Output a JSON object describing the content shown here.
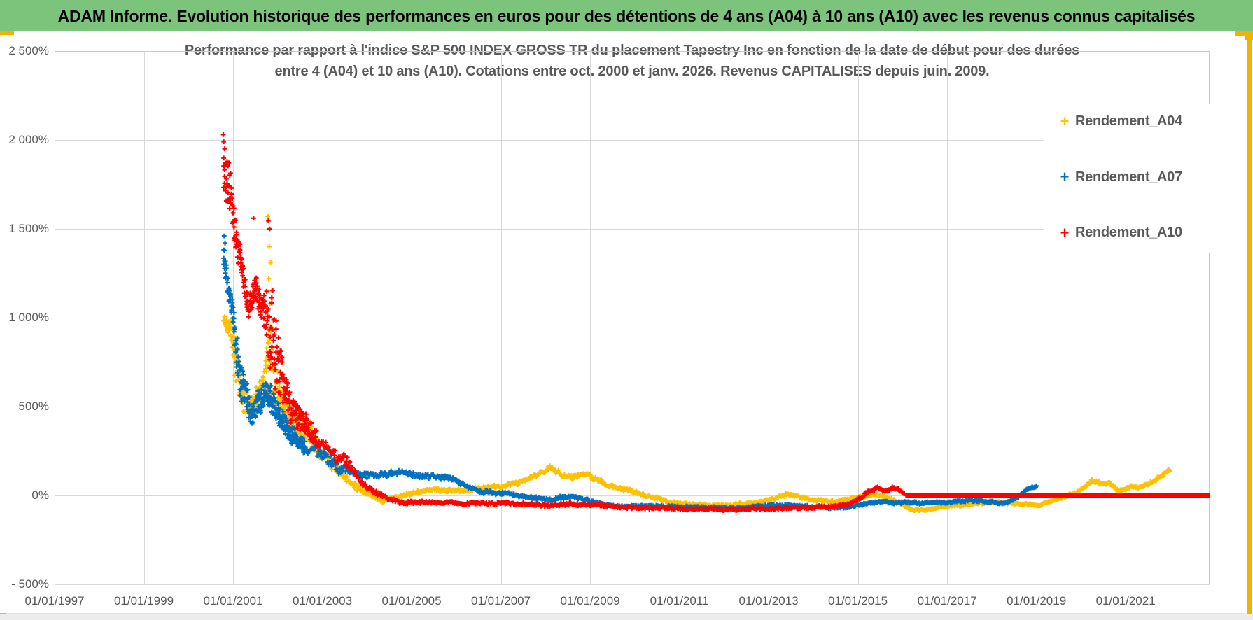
{
  "banner": {
    "title": "ADAM Informe. Evolution historique des performances en euros pour des détentions de 4 ans (A04) à 10 ans (A10) avec les revenus connus capitalisés"
  },
  "colors": {
    "banner_green": "#7cc47c",
    "accent_gold": "#f0b400",
    "grid": "#d9d9d9",
    "axis_text": "#595959",
    "title_text": "#595959",
    "series_a04": "#ffc000",
    "series_a07": "#0070c0",
    "series_a10": "#ff0000"
  },
  "chart_data": {
    "type": "scatter",
    "title_line1": "Performance par rapport à l'indice S&P 500 INDEX GROSS TR  du placement Tapestry Inc en fonction de la date de début pour des durées",
    "title_line2": "entre 4 (A04) et 10 ans (A10). Cotations entre oct. 2000 et janv. 2026. Revenus CAPITALISES depuis juin. 2009.",
    "grid": true,
    "marker": "plus",
    "legend_position": "top-right-inside",
    "x_axis": {
      "min_year": 1997,
      "max_year": 2022.88,
      "ticks": [
        {
          "label": "01/01/1997",
          "year": 1997
        },
        {
          "label": "01/01/1999",
          "year": 1999
        },
        {
          "label": "01/01/2001",
          "year": 2001
        },
        {
          "label": "01/01/2003",
          "year": 2003
        },
        {
          "label": "01/01/2005",
          "year": 2005
        },
        {
          "label": "01/01/2007",
          "year": 2007
        },
        {
          "label": "01/01/2009",
          "year": 2009
        },
        {
          "label": "01/01/2011",
          "year": 2011
        },
        {
          "label": "01/01/2013",
          "year": 2013
        },
        {
          "label": "01/01/2015",
          "year": 2015
        },
        {
          "label": "01/01/2017",
          "year": 2017
        },
        {
          "label": "01/01/2019",
          "year": 2019
        },
        {
          "label": "01/01/2021",
          "year": 2021
        }
      ]
    },
    "y_axis": {
      "min": -500,
      "max": 2500,
      "ticks": [
        {
          "label": "2 500%",
          "value": 2500
        },
        {
          "label": "2 000%",
          "value": 2000
        },
        {
          "label": "1 500%",
          "value": 1500
        },
        {
          "label": "1 000%",
          "value": 1000
        },
        {
          "label": "500%",
          "value": 500
        },
        {
          "label": "0%",
          "value": 0
        },
        {
          "label": "- 500%",
          "value": -500
        }
      ]
    },
    "legend": [
      {
        "label": "Rendement_A04",
        "color": "#ffc000"
      },
      {
        "label": "Rendement_A07",
        "color": "#0070c0"
      },
      {
        "label": "Rendement_A10",
        "color": "#ff0000"
      }
    ],
    "series": [
      {
        "name": "Rendement_A04",
        "color": "#ffc000",
        "seed": 11,
        "anchors": [
          [
            2000.79,
            980,
            60
          ],
          [
            2000.95,
            940,
            70
          ],
          [
            2001.05,
            800,
            200
          ],
          [
            2001.2,
            620,
            120
          ],
          [
            2001.35,
            520,
            90
          ],
          [
            2001.5,
            560,
            80
          ],
          [
            2001.65,
            640,
            100
          ],
          [
            2001.8,
            900,
            350
          ],
          [
            2001.95,
            730,
            200
          ],
          [
            2002.1,
            560,
            130
          ],
          [
            2002.3,
            470,
            110
          ],
          [
            2002.5,
            450,
            100
          ],
          [
            2002.7,
            400,
            90
          ],
          [
            2002.85,
            330,
            70
          ],
          [
            2003.0,
            255,
            50
          ],
          [
            2003.3,
            170,
            40
          ],
          [
            2003.6,
            90,
            30
          ],
          [
            2003.9,
            35,
            20
          ],
          [
            2004.1,
            10,
            16
          ],
          [
            2004.35,
            -25,
            14
          ],
          [
            2004.6,
            -8,
            13
          ],
          [
            2004.9,
            12,
            13
          ],
          [
            2005.2,
            25,
            13
          ],
          [
            2005.5,
            35,
            13
          ],
          [
            2005.8,
            28,
            13
          ],
          [
            2006.1,
            22,
            13
          ],
          [
            2006.4,
            35,
            13
          ],
          [
            2006.7,
            45,
            13
          ],
          [
            2007.0,
            42,
            13
          ],
          [
            2007.3,
            60,
            14
          ],
          [
            2007.6,
            85,
            15
          ],
          [
            2007.9,
            120,
            17
          ],
          [
            2008.1,
            148,
            17
          ],
          [
            2008.3,
            125,
            17
          ],
          [
            2008.55,
            100,
            16
          ],
          [
            2008.75,
            112,
            16
          ],
          [
            2008.95,
            122,
            16
          ],
          [
            2009.15,
            95,
            15
          ],
          [
            2009.4,
            60,
            14
          ],
          [
            2009.7,
            35,
            13
          ],
          [
            2010.0,
            15,
            12
          ],
          [
            2010.4,
            -15,
            11
          ],
          [
            2010.8,
            -40,
            10
          ],
          [
            2011.2,
            -52,
            9
          ],
          [
            2011.6,
            -58,
            9
          ],
          [
            2012.0,
            -60,
            9
          ],
          [
            2012.4,
            -50,
            9
          ],
          [
            2012.8,
            -42,
            9
          ],
          [
            2013.1,
            -15,
            10
          ],
          [
            2013.4,
            8,
            10
          ],
          [
            2013.7,
            -5,
            10
          ],
          [
            2014.0,
            -22,
            9
          ],
          [
            2014.4,
            -35,
            9
          ],
          [
            2014.8,
            -18,
            9
          ],
          [
            2015.1,
            -5,
            9
          ],
          [
            2015.4,
            5,
            9
          ],
          [
            2015.7,
            -15,
            9
          ],
          [
            2015.95,
            -40,
            9
          ],
          [
            2016.2,
            -80,
            9
          ],
          [
            2016.5,
            -85,
            8
          ],
          [
            2016.8,
            -70,
            8
          ],
          [
            2017.2,
            -58,
            8
          ],
          [
            2017.6,
            -45,
            8
          ],
          [
            2018.0,
            -32,
            8
          ],
          [
            2018.4,
            -42,
            8
          ],
          [
            2018.8,
            -52,
            8
          ],
          [
            2019.05,
            -60,
            8
          ],
          [
            2019.3,
            -35,
            8
          ],
          [
            2019.6,
            -10,
            8
          ],
          [
            2019.9,
            15,
            9
          ],
          [
            2020.1,
            55,
            12
          ],
          [
            2020.25,
            88,
            12
          ],
          [
            2020.45,
            70,
            12
          ],
          [
            2020.65,
            75,
            12
          ],
          [
            2020.85,
            25,
            10
          ],
          [
            2021.0,
            40,
            10
          ],
          [
            2021.15,
            55,
            10
          ],
          [
            2021.3,
            38,
            10
          ],
          [
            2021.5,
            55,
            10
          ],
          [
            2021.65,
            85,
            12
          ],
          [
            2021.8,
            110,
            12
          ],
          [
            2021.95,
            140,
            12
          ],
          [
            2022.0,
            145,
            10
          ]
        ],
        "extra_points": [
          [
            2001.78,
            1570
          ],
          [
            2001.81,
            1400
          ],
          [
            2001.84,
            1310
          ],
          [
            2001.8,
            1220
          ],
          [
            2001.86,
            1150
          ],
          [
            2001.83,
            1080
          ]
        ]
      },
      {
        "name": "Rendement_A07",
        "color": "#0070c0",
        "seed": 23,
        "anchors": [
          [
            2000.79,
            1380,
            110
          ],
          [
            2000.9,
            1150,
            90
          ],
          [
            2001.0,
            1000,
            90
          ],
          [
            2001.1,
            700,
            200
          ],
          [
            2001.25,
            560,
            120
          ],
          [
            2001.4,
            480,
            100
          ],
          [
            2001.55,
            520,
            90
          ],
          [
            2001.7,
            560,
            100
          ],
          [
            2001.85,
            500,
            110
          ],
          [
            2002.0,
            420,
            100
          ],
          [
            2002.2,
            360,
            80
          ],
          [
            2002.4,
            310,
            70
          ],
          [
            2002.6,
            280,
            60
          ],
          [
            2002.8,
            235,
            50
          ],
          [
            2003.0,
            205,
            45
          ],
          [
            2003.3,
            165,
            35
          ],
          [
            2003.6,
            130,
            28
          ],
          [
            2003.9,
            112,
            22
          ],
          [
            2004.2,
            118,
            20
          ],
          [
            2004.5,
            130,
            20
          ],
          [
            2004.8,
            138,
            18
          ],
          [
            2005.1,
            120,
            18
          ],
          [
            2005.4,
            112,
            17
          ],
          [
            2005.7,
            108,
            16
          ],
          [
            2006.0,
            80,
            15
          ],
          [
            2006.3,
            48,
            14
          ],
          [
            2006.6,
            22,
            13
          ],
          [
            2006.9,
            5,
            12
          ],
          [
            2007.2,
            10,
            12
          ],
          [
            2007.5,
            -5,
            11
          ],
          [
            2007.8,
            -12,
            11
          ],
          [
            2008.1,
            -20,
            11
          ],
          [
            2008.4,
            -8,
            12
          ],
          [
            2008.7,
            -18,
            11
          ],
          [
            2009.0,
            -35,
            10
          ],
          [
            2009.4,
            -52,
            9
          ],
          [
            2009.8,
            -60,
            9
          ],
          [
            2010.3,
            -62,
            8
          ],
          [
            2010.8,
            -58,
            8
          ],
          [
            2011.3,
            -62,
            8
          ],
          [
            2011.8,
            -68,
            8
          ],
          [
            2012.3,
            -65,
            8
          ],
          [
            2012.8,
            -60,
            8
          ],
          [
            2013.3,
            -58,
            8
          ],
          [
            2013.8,
            -62,
            8
          ],
          [
            2014.3,
            -68,
            8
          ],
          [
            2014.8,
            -60,
            8
          ],
          [
            2015.2,
            -42,
            8
          ],
          [
            2015.5,
            -32,
            8
          ],
          [
            2015.8,
            -38,
            8
          ],
          [
            2016.1,
            -36,
            8
          ],
          [
            2016.4,
            -42,
            8
          ],
          [
            2016.8,
            -38,
            8
          ],
          [
            2017.2,
            -32,
            8
          ],
          [
            2017.6,
            -24,
            8
          ],
          [
            2017.9,
            -30,
            8
          ],
          [
            2018.2,
            -42,
            8
          ],
          [
            2018.45,
            -28,
            8
          ],
          [
            2018.6,
            -8,
            8
          ],
          [
            2018.75,
            25,
            9
          ],
          [
            2018.9,
            48,
            9
          ],
          [
            2019.02,
            50,
            8
          ]
        ],
        "extra_points": [
          [
            2000.8,
            1460
          ],
          [
            2000.82,
            1420
          ]
        ]
      },
      {
        "name": "Rendement_A10",
        "color": "#ff0000",
        "seed": 5,
        "anchors": [
          [
            2000.79,
            1800,
            230
          ],
          [
            2000.95,
            1700,
            180
          ],
          [
            2001.05,
            1480,
            120
          ],
          [
            2001.2,
            1300,
            90
          ],
          [
            2001.35,
            1060,
            90
          ],
          [
            2001.5,
            1200,
            110
          ],
          [
            2001.62,
            1130,
            140
          ],
          [
            2001.72,
            1150,
            200
          ],
          [
            2001.85,
            1000,
            380
          ],
          [
            2002.0,
            800,
            250
          ],
          [
            2002.15,
            650,
            180
          ],
          [
            2002.3,
            560,
            130
          ],
          [
            2002.5,
            480,
            100
          ],
          [
            2002.7,
            400,
            80
          ],
          [
            2002.85,
            340,
            65
          ],
          [
            2003.0,
            290,
            50
          ],
          [
            2003.3,
            230,
            45
          ],
          [
            2003.6,
            160,
            40
          ],
          [
            2003.9,
            70,
            25
          ],
          [
            2004.2,
            25,
            18
          ],
          [
            2004.5,
            -15,
            15
          ],
          [
            2004.8,
            -35,
            12
          ],
          [
            2005.2,
            -32,
            11
          ],
          [
            2005.6,
            -38,
            10
          ],
          [
            2006.0,
            -42,
            10
          ],
          [
            2006.5,
            -40,
            10
          ],
          [
            2007.0,
            -38,
            10
          ],
          [
            2007.5,
            -45,
            10
          ],
          [
            2008.0,
            -55,
            10
          ],
          [
            2008.5,
            -48,
            11
          ],
          [
            2009.0,
            -55,
            10
          ],
          [
            2009.5,
            -62,
            9
          ],
          [
            2010.0,
            -65,
            9
          ],
          [
            2010.5,
            -72,
            8
          ],
          [
            2011.0,
            -75,
            8
          ],
          [
            2011.5,
            -78,
            8
          ],
          [
            2012.0,
            -80,
            8
          ],
          [
            2012.5,
            -78,
            8
          ],
          [
            2013.0,
            -75,
            8
          ],
          [
            2013.5,
            -72,
            8
          ],
          [
            2014.0,
            -65,
            8
          ],
          [
            2014.5,
            -58,
            8
          ],
          [
            2014.8,
            -45,
            8
          ],
          [
            2015.05,
            -18,
            9
          ],
          [
            2015.25,
            28,
            11
          ],
          [
            2015.45,
            45,
            10
          ],
          [
            2015.6,
            30,
            10
          ],
          [
            2015.8,
            46,
            10
          ],
          [
            2015.95,
            30,
            9
          ],
          [
            2016.05,
            8,
            5
          ]
        ],
        "flat_zero": [
          2016.08,
          2022.88
        ],
        "extra_points": [
          [
            2000.78,
            2030
          ],
          [
            2000.79,
            1990
          ],
          [
            2000.81,
            1950
          ],
          [
            2001.46,
            1560
          ],
          [
            2001.79,
            1545
          ],
          [
            2001.82,
            1500
          ]
        ]
      }
    ]
  }
}
